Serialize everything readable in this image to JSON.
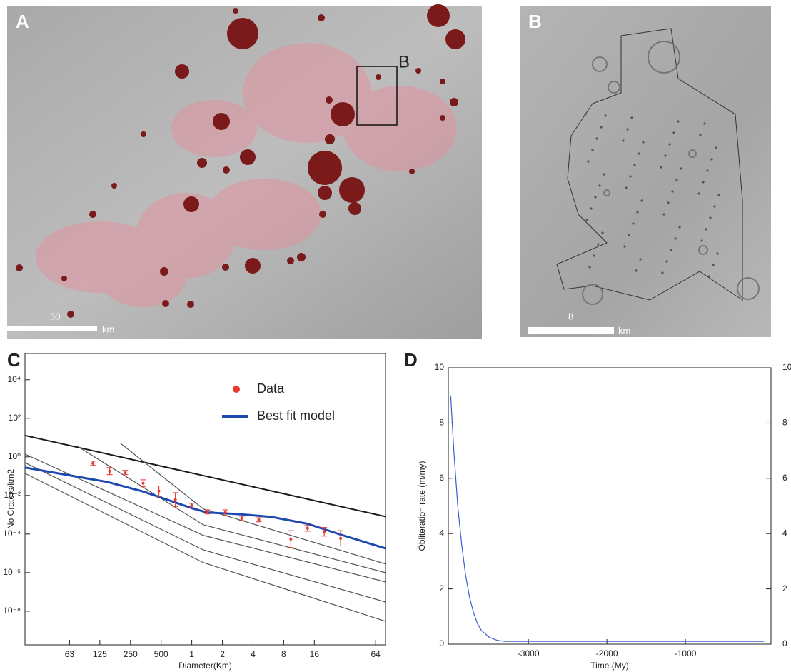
{
  "panels": {
    "A": {
      "label": "A",
      "box_label": "B",
      "scale_length": 50,
      "scale_unit": "km"
    },
    "B": {
      "label": "B",
      "scale_length": 8,
      "scale_unit": "km"
    }
  },
  "chart_data": [
    {
      "type": "line",
      "panel_label": "C",
      "xlabel": "Diameter(Km)",
      "ylabel": "No Craters/km2",
      "log_x": true,
      "log_y": true,
      "xlim": [
        0.023,
        80
      ],
      "ylim": [
        1.8e-10,
        230000
      ],
      "xticks": [
        {
          "value": 0.063,
          "label": "63"
        },
        {
          "value": 0.125,
          "label": "125"
        },
        {
          "value": 0.25,
          "label": "250"
        },
        {
          "value": 0.5,
          "label": "500"
        },
        1,
        2,
        4,
        8,
        16,
        64
      ],
      "yticks": [
        {
          "value": 1e-08,
          "label": "10⁻⁸"
        },
        {
          "value": 1e-06,
          "label": "10⁻⁶"
        },
        {
          "value": 0.0001,
          "label": "10⁻⁴"
        },
        {
          "value": 0.01,
          "label": "10⁻²"
        },
        {
          "value": 1,
          "label": "10⁰"
        },
        {
          "value": 100,
          "label": "10²"
        },
        {
          "value": 10000,
          "label": "10⁴"
        }
      ],
      "series": [
        {
          "color": "#1a1a1a",
          "x": [
            0.023,
            80
          ],
          "values": [
            12.9,
            0.0008
          ]
        },
        {
          "color": "#555555",
          "x": [
            0.023,
            1.3,
            80
          ],
          "values": [
            1.4,
            8.5e-05,
            3.3e-07
          ]
        },
        {
          "color": "#555555",
          "x": [
            0.023,
            1.3,
            80
          ],
          "values": [
            0.5,
            1.5e-05,
            3e-08
          ]
        },
        {
          "color": "#555555",
          "x": [
            0.023,
            1.3,
            80
          ],
          "values": [
            0.14,
            3.3e-06,
            3e-09
          ]
        },
        {
          "color": "#555555",
          "x": [
            0.075,
            1.3,
            80
          ],
          "values": [
            3.6,
            0.0003,
            1e-06
          ]
        },
        {
          "color": "#555555",
          "x": [
            0.2,
            1.3,
            80
          ],
          "values": [
            5,
            0.002,
            2.8e-06
          ]
        },
        {
          "name": "Best fit model",
          "color": "#1f48b0",
          "x": [
            0.023,
            0.148,
            0.333,
            1.03,
            1.42,
            2.75,
            6.1,
            13.7,
            30.6,
            80
          ],
          "values": [
            0.28,
            0.05,
            0.016,
            0.0021,
            0.0013,
            0.0011,
            0.00077,
            0.00034,
            8.5e-05,
            1.8e-05
          ]
        },
        {
          "name": "Data",
          "color": "#e8372c",
          "markers": true,
          "x": [
            0.107,
            0.156,
            0.222,
            0.333,
            0.475,
            0.69,
            1.0,
            1.42,
            2.14,
            3.1,
            4.56,
            9.4,
            13.7,
            20,
            29
          ],
          "values": [
            0.46,
            0.18,
            0.15,
            0.043,
            0.017,
            0.006,
            0.003,
            0.0014,
            0.0013,
            0.00065,
            0.00055,
            5.5e-05,
            0.0002,
            0.00013,
            6e-05
          ],
          "lower": [
            0.36,
            0.12,
            0.12,
            0.028,
            0.009,
            0.0026,
            0.0023,
            0.0011,
            0.0009,
            0.0005,
            0.00043,
            2e-05,
            0.00014,
            7.8e-05,
            2.4e-05
          ],
          "upper": [
            0.6,
            0.28,
            0.2,
            0.065,
            0.031,
            0.014,
            0.0039,
            0.0018,
            0.0018,
            0.00084,
            0.0007,
            0.00015,
            0.00028,
            0.00022,
            0.00015
          ]
        }
      ]
    },
    {
      "type": "line",
      "panel_label": "D",
      "xlabel": "Time (My)",
      "ylabel": "Obliteration rate (m/my)",
      "xlim": [
        -4020,
        90
      ],
      "ylim": [
        0,
        10
      ],
      "y2lim": [
        0,
        10
      ],
      "xticks": [
        -3000,
        -2000,
        -1000
      ],
      "yticks": [
        0,
        2,
        4,
        6,
        8,
        10
      ],
      "y2ticks": [
        0,
        2,
        4,
        6,
        8,
        10
      ],
      "series": [
        {
          "color": "#3a5fcd",
          "x": [
            -3990,
            -3950,
            -3900,
            -3850,
            -3800,
            -3750,
            -3700,
            -3650,
            -3600,
            -3500,
            -3400,
            -3300,
            -3000,
            -2000,
            -1000,
            0
          ],
          "values": [
            9.0,
            7.0,
            5.0,
            3.6,
            2.5,
            1.7,
            1.15,
            0.75,
            0.5,
            0.25,
            0.14,
            0.1,
            0.1,
            0.1,
            0.1,
            0.1
          ]
        }
      ]
    }
  ]
}
